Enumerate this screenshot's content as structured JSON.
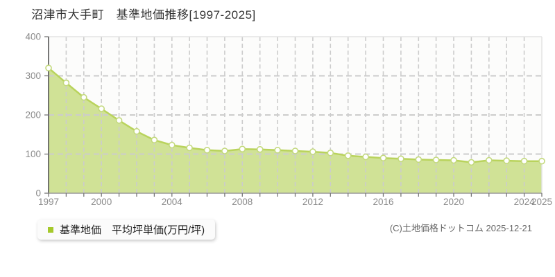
{
  "title": "沼津市大手町　基準地価推移[1997-2025]",
  "legend": {
    "label": "基準地価　平均坪単価(万円/坪)"
  },
  "footer": {
    "copyright": "(C)土地価格ドットコム 2025-12-21"
  },
  "chart_data": {
    "type": "area",
    "title": "沼津市大手町 基準地価推移[1997-2025]",
    "xlabel": "",
    "ylabel": "平均坪単価(万円/坪)",
    "x": [
      1997,
      1998,
      1999,
      2000,
      2001,
      2002,
      2003,
      2004,
      2005,
      2006,
      2007,
      2008,
      2009,
      2010,
      2011,
      2012,
      2013,
      2014,
      2015,
      2016,
      2017,
      2018,
      2019,
      2020,
      2021,
      2022,
      2023,
      2024,
      2025
    ],
    "series": [
      {
        "name": "基準地価 平均坪単価(万円/坪)",
        "values": [
          320,
          282,
          245,
          216,
          186,
          158,
          136,
          123,
          116,
          110,
          108,
          113,
          112,
          110,
          108,
          106,
          103,
          96,
          93,
          90,
          88,
          86,
          85,
          84,
          79,
          84,
          83,
          82,
          82
        ]
      }
    ],
    "ylim": [
      0,
      400
    ],
    "yticks": [
      {
        "value": 0,
        "label": "0"
      },
      {
        "value": 100,
        "label": "100"
      },
      {
        "value": 200,
        "label": "200"
      },
      {
        "value": 300,
        "label": "300"
      },
      {
        "value": 400,
        "label": "400"
      }
    ],
    "xticks": [
      {
        "year": 1997,
        "label": "1997"
      },
      {
        "year": 2000,
        "label": "2000"
      },
      {
        "year": 2004,
        "label": "2004"
      },
      {
        "year": 2008,
        "label": "2008"
      },
      {
        "year": 2012,
        "label": "2012"
      },
      {
        "year": 2016,
        "label": "2016"
      },
      {
        "year": 2020,
        "label": "2020"
      },
      {
        "year": 2024,
        "label": "2024"
      },
      {
        "year": 2025,
        "label": "2025"
      }
    ],
    "grid": true,
    "legend_position": "bottom-left",
    "colors": {
      "area_fill": "rgba(163,200,50,0.5)",
      "line": "#b9d35c",
      "point_fill": "#ffffff",
      "point_stroke": "#c3d97d",
      "grid": "#cccccc",
      "plot_bg": "#fcfcfb",
      "border": "#e3e3e3",
      "y_axis": "#4a4a4a",
      "x_axis": "#9a9a9a",
      "tick": "#777777",
      "tick_label": "#8a8a8a",
      "legend_marker": "#a5c92b",
      "title_text": "#333333",
      "copyright_text": "#666666"
    }
  }
}
